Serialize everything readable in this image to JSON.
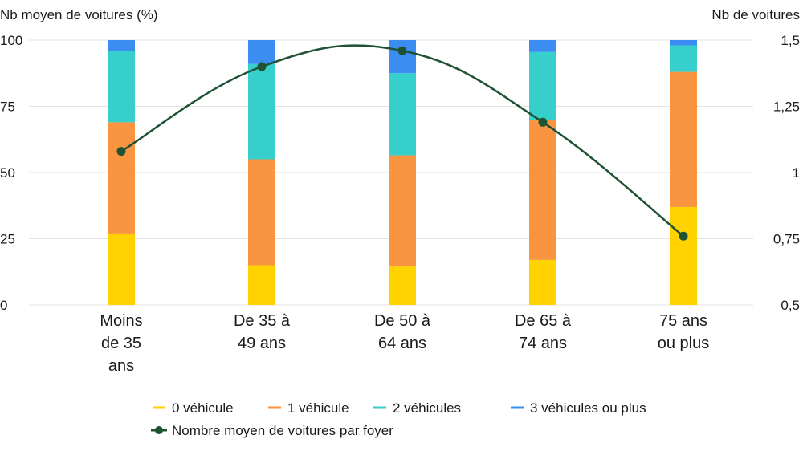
{
  "chart_data": {
    "type": "bar",
    "stacked": true,
    "categories": [
      [
        "Moins",
        "de 35",
        "ans"
      ],
      [
        "De 35 à",
        "49 ans"
      ],
      [
        "De 50 à",
        "64 ans"
      ],
      [
        "De 65 à",
        "74 ans"
      ],
      [
        "75 ans",
        "ou plus"
      ]
    ],
    "series": [
      {
        "name": "0 véhicule",
        "color": "#FFD200",
        "values": [
          27,
          15,
          14.5,
          17,
          37
        ]
      },
      {
        "name": "1 véhicule",
        "color": "#F99440",
        "values": [
          42,
          40,
          42,
          53,
          51
        ]
      },
      {
        "name": "2 véhicules",
        "color": "#37CFCB",
        "values": [
          27,
          36,
          31,
          25.5,
          10
        ]
      },
      {
        "name": "3 véhicules ou plus",
        "color": "#3B8DF1",
        "values": [
          4,
          9,
          12.5,
          4.5,
          2
        ]
      }
    ],
    "line_series": {
      "name": "Nombre moyen de voitures par foyer",
      "color": "#1E5233",
      "values": [
        1.08,
        1.4,
        1.46,
        1.19,
        0.76
      ]
    },
    "ylabel": "Nb moyen de voitures (%)",
    "y2label": "Nb de voitures",
    "ylim": [
      0,
      100
    ],
    "y2lim": [
      0.5,
      1.5
    ],
    "yticks": [
      "0",
      "25",
      "50",
      "75",
      "100"
    ],
    "y2ticks": [
      "0,5",
      "0,75",
      "1",
      "1,25",
      "1,5"
    ],
    "grid": true,
    "legend": "bottom"
  }
}
